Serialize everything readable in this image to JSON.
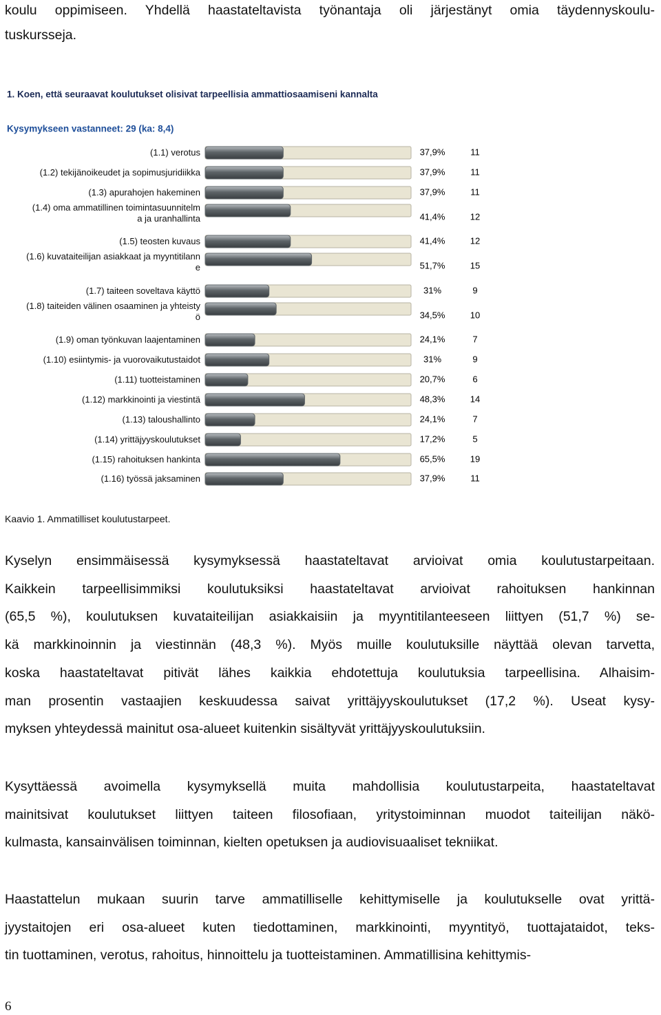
{
  "top_text": {
    "lines": [
      "koulu oppimiseen. Yhdellä haastateltavista työnantaja oli järjestänyt omia täydennyskoulu-",
      "tuskursseja."
    ]
  },
  "chart_data": {
    "type": "bar",
    "title": "1. Koen, että seuraavat koulutukset olisivat tarpeellisia ammattiosaamiseni kannalta",
    "subtitle": "Kysymykseen vastanneet: 29 (ka: 8,4)",
    "categories": [
      "(1.1) verotus",
      "(1.2) tekijänoikeudet ja sopimusjuridiikka",
      "(1.3) apurahojen hakeminen",
      "(1.4) oma ammatillinen toimintasuunnitelm\na ja uranhallinta",
      "(1.5) teosten kuvaus",
      "(1.6) kuvataiteilijan asiakkaat ja myyntitilann\ne",
      "(1.7) taiteen soveltava käyttö",
      "(1.8) taiteiden välinen osaaminen ja yhteisty\nö",
      "(1.9) oman työnkuvan laajentaminen",
      "(1.10) esiintymis- ja vuorovaikutustaidot",
      "(1.11) tuotteistaminen",
      "(1.12) markkinointi ja viestintä",
      "(1.13) taloushallinto",
      "(1.14) yrittäjyyskoulutukset",
      "(1.15) rahoituksen hankinta",
      "(1.16) työssä jaksaminen"
    ],
    "values": [
      37.9,
      37.9,
      37.9,
      41.4,
      41.4,
      51.7,
      31,
      34.5,
      24.1,
      31,
      20.7,
      48.3,
      24.1,
      17.2,
      65.5,
      37.9
    ],
    "value_labels": [
      "37,9%",
      "37,9%",
      "37,9%",
      "41,4%",
      "41,4%",
      "51,7%",
      "31%",
      "34,5%",
      "24,1%",
      "31%",
      "20,7%",
      "48,3%",
      "24,1%",
      "17,2%",
      "65,5%",
      "37,9%"
    ],
    "counts": [
      11,
      11,
      11,
      12,
      12,
      15,
      9,
      10,
      7,
      9,
      6,
      14,
      7,
      5,
      19,
      11
    ],
    "xlim": [
      0,
      100
    ],
    "color": "#5e6468",
    "track_color": "#e9e5d3"
  },
  "caption": "Kaavio 1. Ammatilliset koulutustarpeet.",
  "paragraphs": [
    [
      "Kyselyn ensimmäisessä kysymyksessä haastateltavat arvioivat omia koulutustarpeitaan.",
      "Kaikkein tarpeellisimmiksi koulutuksiksi haastateltavat arvioivat rahoituksen hankinnan",
      "(65,5 %), koulutuksen kuvataiteilijan asiakkaisiin ja myyntitilanteeseen liittyen (51,7 %) se-",
      "kä markkinoinnin ja viestinnän (48,3 %). Myös muille koulutuksille näyttää olevan tarvetta,",
      "koska haastateltavat pitivät lähes kaikkia ehdotettuja koulutuksia tarpeellisina. Alhaisim-",
      "man prosentin vastaajien keskuudessa saivat yrittäjyyskoulutukset (17,2 %). Useat kysy-",
      "myksen yhteydessä mainitut osa-alueet kuitenkin sisältyvät yrittäjyyskoulutuksiin."
    ],
    [
      "Kysyttäessä avoimella kysymyksellä muita mahdollisia koulutustarpeita, haastateltavat",
      "mainitsivat koulutukset liittyen taiteen filosofiaan, yritystoiminnan muodot taiteilijan näkö-",
      "kulmasta, kansainvälisen toiminnan, kielten opetuksen ja audiovisuaaliset tekniikat."
    ],
    [
      "Haastattelun mukaan suurin tarve ammatilliselle kehittymiselle ja koulutukselle ovat yrittä-",
      "jyystaitojen eri osa-alueet kuten tiedottaminen, markkinointi, myyntityö, tuottajataidot, teks-",
      "tin tuottaminen, verotus, rahoitus, hinnoittelu ja tuotteistaminen. Ammatillisina kehittymis-"
    ]
  ],
  "page_number": "6"
}
